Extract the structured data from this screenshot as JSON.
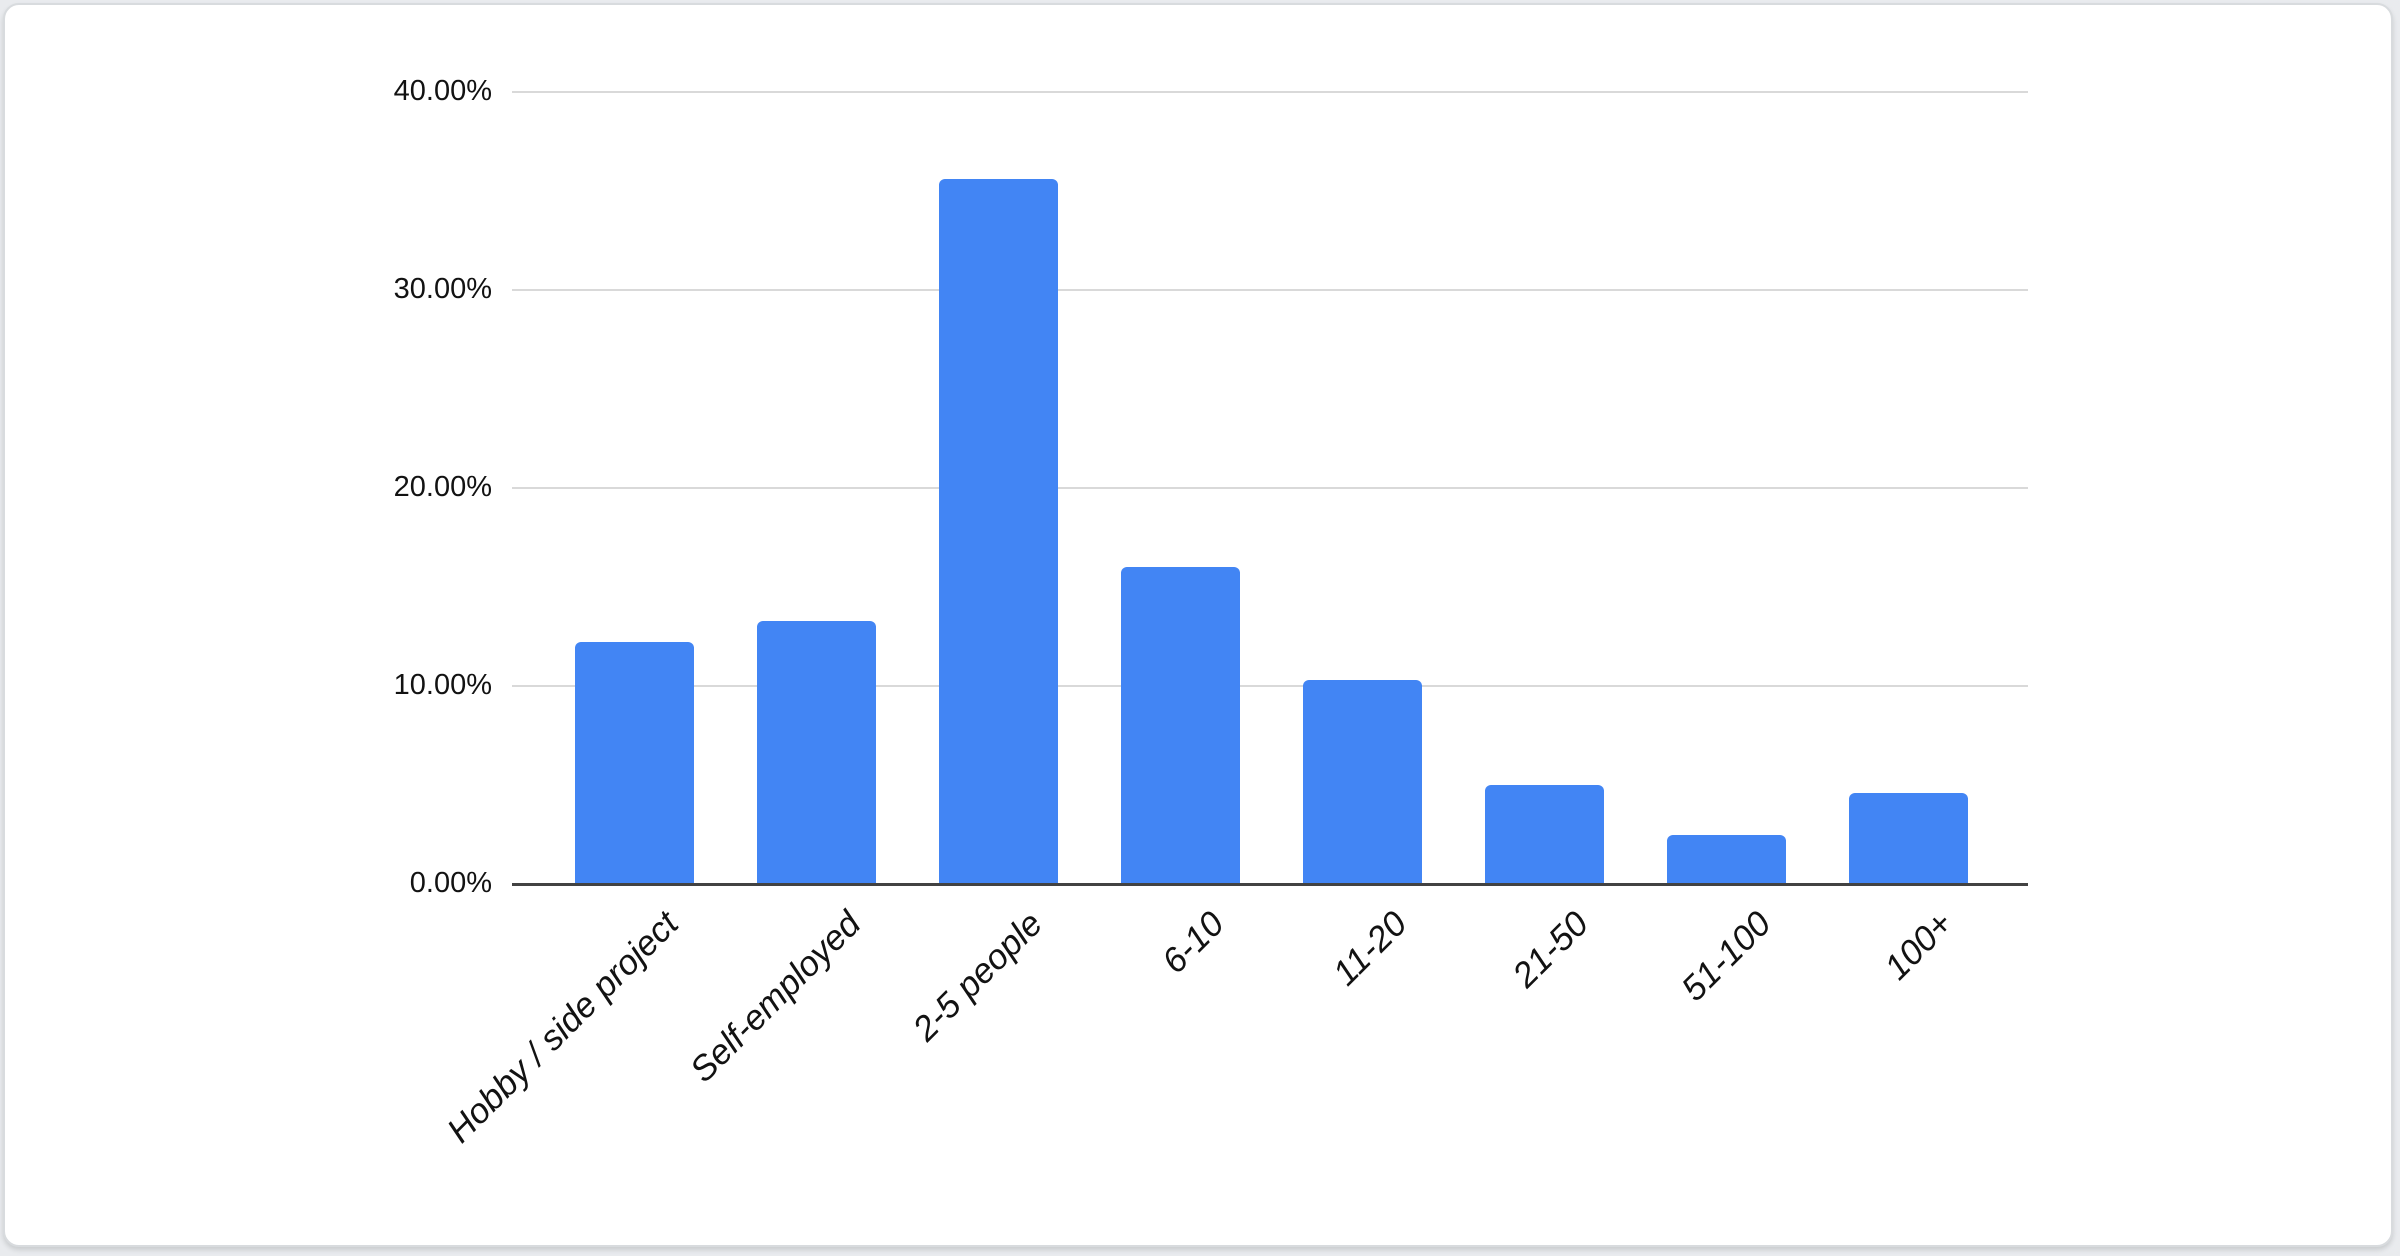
{
  "card": {
    "background": "#ffffff",
    "border_color": "#d8dbde"
  },
  "chart_data": {
    "type": "bar",
    "title": "",
    "xlabel": "",
    "ylabel": "",
    "categories": [
      "Hobby / side project",
      "Self-employed",
      "2-5 people",
      "6-10",
      "11-20",
      "21-50",
      "51-100",
      "100+"
    ],
    "values": [
      12.2,
      13.3,
      35.6,
      16.0,
      10.3,
      5.0,
      2.5,
      4.6
    ],
    "value_unit": "%",
    "ylim": [
      0,
      40
    ],
    "y_ticks": [
      {
        "label": "40.00%",
        "value": 40
      },
      {
        "label": "30.00%",
        "value": 30
      },
      {
        "label": "20.00%",
        "value": 20
      },
      {
        "label": "10.00%",
        "value": 10
      },
      {
        "label": "0.00%",
        "value": 0
      }
    ],
    "grid": true,
    "legend_position": "none",
    "bar_color": "#4285f4",
    "gridline_color": "#d9d9d9",
    "axis_line_color": "#424242",
    "label_color": "#121212"
  }
}
